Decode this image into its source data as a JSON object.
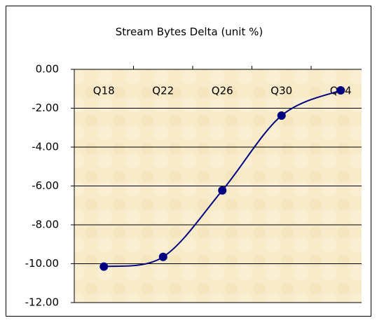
{
  "chart_data": {
    "type": "line",
    "title": "Stream Bytes Delta (unit %)",
    "categories": [
      "Q18",
      "Q22",
      "Q26",
      "Q30",
      "Q34"
    ],
    "values": [
      -10.15,
      -9.65,
      -6.23,
      -2.38,
      -1.08
    ],
    "color": "#000080",
    "smooth": true,
    "ylim": [
      -12,
      0
    ],
    "yticks": [
      {
        "value": 0,
        "label": "0.00"
      },
      {
        "value": -2,
        "label": "-2.00"
      },
      {
        "value": -4,
        "label": "-4.00"
      },
      {
        "value": -6,
        "label": "-6.00"
      },
      {
        "value": -8,
        "label": "-8.00"
      },
      {
        "value": -10,
        "label": "-10.00"
      },
      {
        "value": -12,
        "label": "-12.00"
      }
    ],
    "grid": true
  }
}
